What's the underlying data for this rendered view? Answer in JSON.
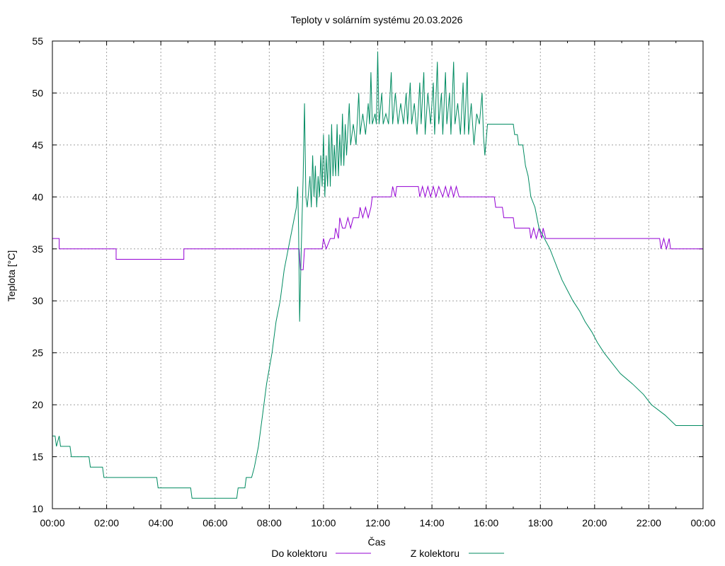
{
  "chart_data": {
    "type": "line",
    "title": "Teploty v solárním systému 20.03.2026",
    "xlabel": "Čas",
    "ylabel": "Teplota [°C]",
    "xlim": [
      0,
      24
    ],
    "ylim": [
      10,
      55
    ],
    "grid": true,
    "legend_position": "bottom",
    "x_ticks": [
      "00:00",
      "02:00",
      "04:00",
      "06:00",
      "08:00",
      "10:00",
      "12:00",
      "14:00",
      "16:00",
      "18:00",
      "20:00",
      "22:00",
      "00:00"
    ],
    "y_ticks": [
      10,
      15,
      20,
      25,
      30,
      35,
      40,
      45,
      50,
      55
    ],
    "series": [
      {
        "name": "Do kolektoru",
        "color": "#9400d3",
        "points": [
          [
            0.0,
            36
          ],
          [
            0.25,
            36
          ],
          [
            0.25,
            35
          ],
          [
            2.35,
            35
          ],
          [
            2.35,
            34
          ],
          [
            4.85,
            34
          ],
          [
            4.85,
            35
          ],
          [
            9.1,
            35
          ],
          [
            9.15,
            33
          ],
          [
            9.25,
            33
          ],
          [
            9.3,
            35
          ],
          [
            9.95,
            35
          ],
          [
            10.0,
            36
          ],
          [
            10.1,
            35
          ],
          [
            10.25,
            36
          ],
          [
            10.4,
            36
          ],
          [
            10.45,
            37
          ],
          [
            10.55,
            36
          ],
          [
            10.6,
            38
          ],
          [
            10.7,
            37
          ],
          [
            10.8,
            37
          ],
          [
            10.9,
            38
          ],
          [
            11.0,
            37
          ],
          [
            11.1,
            38
          ],
          [
            11.3,
            38
          ],
          [
            11.35,
            39
          ],
          [
            11.45,
            38
          ],
          [
            11.55,
            39
          ],
          [
            11.65,
            38
          ],
          [
            11.75,
            39
          ],
          [
            11.8,
            40
          ],
          [
            12.5,
            40
          ],
          [
            12.55,
            41
          ],
          [
            12.65,
            40
          ],
          [
            12.7,
            41
          ],
          [
            13.5,
            41
          ],
          [
            13.55,
            40
          ],
          [
            13.65,
            41
          ],
          [
            13.75,
            40
          ],
          [
            13.85,
            41
          ],
          [
            13.95,
            40
          ],
          [
            14.05,
            41
          ],
          [
            14.15,
            40
          ],
          [
            14.25,
            41
          ],
          [
            14.4,
            40
          ],
          [
            14.5,
            41
          ],
          [
            14.6,
            40
          ],
          [
            14.7,
            41
          ],
          [
            14.8,
            40
          ],
          [
            14.9,
            41
          ],
          [
            15.0,
            40
          ],
          [
            16.05,
            40
          ],
          [
            16.3,
            40
          ],
          [
            16.35,
            39
          ],
          [
            16.6,
            39
          ],
          [
            16.65,
            38
          ],
          [
            17.0,
            38
          ],
          [
            17.05,
            37
          ],
          [
            17.6,
            37
          ],
          [
            17.65,
            36
          ],
          [
            17.75,
            37
          ],
          [
            17.85,
            36
          ],
          [
            17.95,
            37
          ],
          [
            18.05,
            36
          ],
          [
            18.1,
            37
          ],
          [
            18.2,
            36
          ],
          [
            22.4,
            36
          ],
          [
            22.45,
            35
          ],
          [
            22.55,
            36
          ],
          [
            22.65,
            35
          ],
          [
            22.75,
            36
          ],
          [
            22.8,
            35
          ],
          [
            24.0,
            35
          ]
        ]
      },
      {
        "name": "Z kolektoru",
        "color": "#008b61",
        "points": [
          [
            0.0,
            17
          ],
          [
            0.1,
            17
          ],
          [
            0.15,
            16
          ],
          [
            0.25,
            17
          ],
          [
            0.3,
            16
          ],
          [
            0.65,
            16
          ],
          [
            0.7,
            15
          ],
          [
            1.35,
            15
          ],
          [
            1.4,
            14
          ],
          [
            1.85,
            14
          ],
          [
            1.9,
            13
          ],
          [
            3.85,
            13
          ],
          [
            3.9,
            12
          ],
          [
            5.1,
            12
          ],
          [
            5.15,
            11
          ],
          [
            6.8,
            11
          ],
          [
            6.85,
            12
          ],
          [
            7.1,
            12
          ],
          [
            7.15,
            13
          ],
          [
            7.35,
            13
          ],
          [
            7.45,
            14
          ],
          [
            7.6,
            16
          ],
          [
            7.75,
            19
          ],
          [
            7.9,
            22
          ],
          [
            8.1,
            25
          ],
          [
            8.25,
            28
          ],
          [
            8.4,
            30
          ],
          [
            8.55,
            33
          ],
          [
            8.7,
            35
          ],
          [
            8.85,
            37
          ],
          [
            9.0,
            39
          ],
          [
            9.05,
            41
          ],
          [
            9.08,
            37
          ],
          [
            9.12,
            28
          ],
          [
            9.18,
            35
          ],
          [
            9.25,
            42
          ],
          [
            9.3,
            49
          ],
          [
            9.35,
            40
          ],
          [
            9.4,
            39
          ],
          [
            9.5,
            42
          ],
          [
            9.55,
            39
          ],
          [
            9.6,
            44
          ],
          [
            9.65,
            40
          ],
          [
            9.7,
            43
          ],
          [
            9.75,
            39
          ],
          [
            9.8,
            42
          ],
          [
            9.85,
            40
          ],
          [
            9.9,
            44
          ],
          [
            9.95,
            41
          ],
          [
            10.0,
            46
          ],
          [
            10.05,
            40
          ],
          [
            10.1,
            44
          ],
          [
            10.15,
            41
          ],
          [
            10.2,
            46
          ],
          [
            10.25,
            41
          ],
          [
            10.3,
            47
          ],
          [
            10.35,
            42
          ],
          [
            10.4,
            45
          ],
          [
            10.45,
            42
          ],
          [
            10.5,
            47
          ],
          [
            10.55,
            42
          ],
          [
            10.6,
            46
          ],
          [
            10.65,
            43
          ],
          [
            10.7,
            48
          ],
          [
            10.75,
            43
          ],
          [
            10.8,
            47
          ],
          [
            10.85,
            44
          ],
          [
            10.95,
            49
          ],
          [
            11.0,
            45
          ],
          [
            11.1,
            47
          ],
          [
            11.2,
            45
          ],
          [
            11.3,
            50
          ],
          [
            11.35,
            46
          ],
          [
            11.45,
            48
          ],
          [
            11.55,
            46
          ],
          [
            11.65,
            49
          ],
          [
            11.7,
            47
          ],
          [
            11.75,
            52
          ],
          [
            11.8,
            47
          ],
          [
            11.9,
            48
          ],
          [
            11.95,
            47
          ],
          [
            12.0,
            54
          ],
          [
            12.05,
            47
          ],
          [
            12.15,
            50
          ],
          [
            12.2,
            47
          ],
          [
            12.3,
            48
          ],
          [
            12.4,
            47
          ],
          [
            12.5,
            52
          ],
          [
            12.55,
            47
          ],
          [
            12.65,
            50
          ],
          [
            12.75,
            47
          ],
          [
            12.85,
            49
          ],
          [
            12.95,
            47
          ],
          [
            13.05,
            50
          ],
          [
            13.1,
            47
          ],
          [
            13.2,
            51
          ],
          [
            13.25,
            47
          ],
          [
            13.35,
            49
          ],
          [
            13.45,
            46
          ],
          [
            13.55,
            51
          ],
          [
            13.6,
            47
          ],
          [
            13.7,
            52
          ],
          [
            13.75,
            46
          ],
          [
            13.85,
            50
          ],
          [
            13.95,
            47
          ],
          [
            14.05,
            51
          ],
          [
            14.1,
            46
          ],
          [
            14.2,
            53
          ],
          [
            14.25,
            47
          ],
          [
            14.35,
            50
          ],
          [
            14.4,
            46
          ],
          [
            14.5,
            52
          ],
          [
            14.55,
            47
          ],
          [
            14.65,
            50
          ],
          [
            14.7,
            46
          ],
          [
            14.8,
            53
          ],
          [
            14.85,
            47
          ],
          [
            14.95,
            49
          ],
          [
            15.05,
            46
          ],
          [
            15.15,
            51
          ],
          [
            15.2,
            46
          ],
          [
            15.3,
            52
          ],
          [
            15.35,
            46
          ],
          [
            15.45,
            49
          ],
          [
            15.55,
            45
          ],
          [
            15.65,
            48
          ],
          [
            15.75,
            47
          ],
          [
            15.85,
            50
          ],
          [
            15.9,
            46
          ],
          [
            15.95,
            44
          ],
          [
            16.05,
            47
          ],
          [
            17.0,
            47
          ],
          [
            17.05,
            46
          ],
          [
            17.15,
            46
          ],
          [
            17.2,
            45
          ],
          [
            17.35,
            45
          ],
          [
            17.45,
            43
          ],
          [
            17.55,
            42
          ],
          [
            17.65,
            40
          ],
          [
            17.8,
            39
          ],
          [
            17.95,
            37
          ],
          [
            18.15,
            36
          ],
          [
            18.35,
            35
          ],
          [
            18.5,
            34
          ],
          [
            18.65,
            33
          ],
          [
            18.8,
            32
          ],
          [
            19.0,
            31
          ],
          [
            19.2,
            30
          ],
          [
            19.45,
            29
          ],
          [
            19.65,
            28
          ],
          [
            19.9,
            27
          ],
          [
            20.1,
            26
          ],
          [
            20.35,
            25
          ],
          [
            20.65,
            24
          ],
          [
            20.95,
            23
          ],
          [
            21.4,
            22
          ],
          [
            21.8,
            21
          ],
          [
            22.1,
            20
          ],
          [
            22.6,
            19
          ],
          [
            23.0,
            18
          ],
          [
            24.0,
            18
          ]
        ]
      }
    ]
  }
}
